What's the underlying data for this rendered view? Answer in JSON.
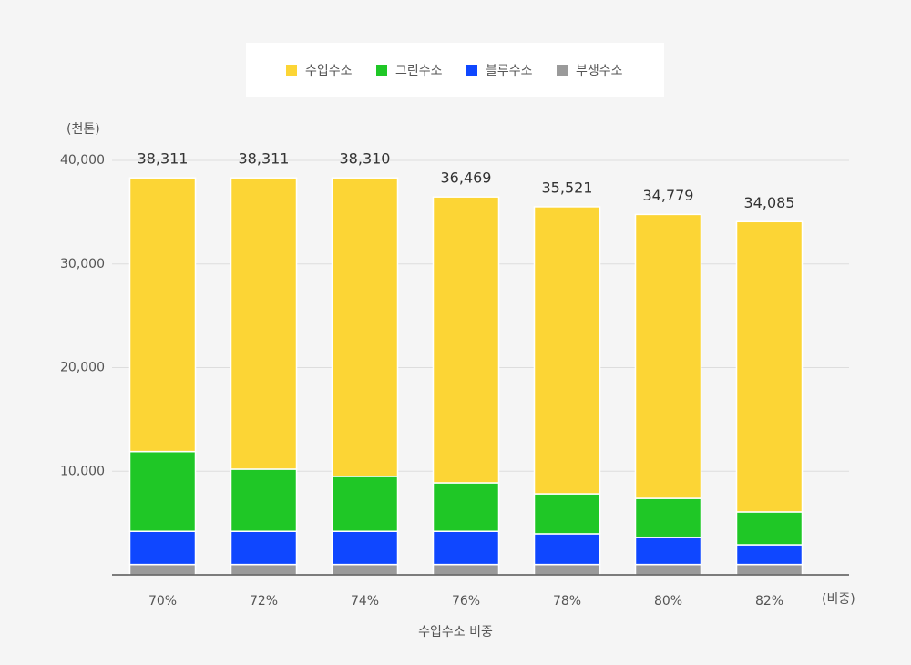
{
  "chart_data": {
    "type": "stacked_bar",
    "y_unit": "(천톤)",
    "x_unit": "(비중)",
    "x_title": "수입수소 비중",
    "categories": [
      "70%",
      "72%",
      "74%",
      "76%",
      "78%",
      "80%",
      "82%"
    ],
    "series": [
      {
        "name": "부생수소",
        "color": "#9a9a9a",
        "values": [
          1000,
          1000,
          1000,
          1000,
          1000,
          1000,
          1000
        ]
      },
      {
        "name": "블루수소",
        "color": "#0f47ff",
        "values": [
          3200,
          3200,
          3200,
          3200,
          2960,
          2600,
          1900
        ]
      },
      {
        "name": "그린수소",
        "color": "#1fc726",
        "values": [
          7700,
          6000,
          5300,
          4680,
          3860,
          3780,
          3170
        ]
      },
      {
        "name": "수입수소",
        "color": "#fcd535",
        "values": [
          26411,
          28111,
          28810,
          27589,
          27701,
          27399,
          28015
        ]
      }
    ],
    "totals": {
      "values": [
        38311,
        38311,
        38310,
        36469,
        35521,
        34779,
        34085
      ],
      "value_labels": [
        "38,311",
        "38,311",
        "38,310",
        "36,469",
        "35,521",
        "34,779",
        "34,085"
      ]
    },
    "legend_order": [
      3,
      2,
      1,
      0
    ],
    "ylim": [
      0,
      40000
    ],
    "yticks": [
      {
        "value": 10000,
        "label": "10,000"
      },
      {
        "value": 20000,
        "label": "20,000"
      },
      {
        "value": 30000,
        "label": "30,000"
      },
      {
        "value": 40000,
        "label": "40,000"
      }
    ],
    "grid": true
  }
}
